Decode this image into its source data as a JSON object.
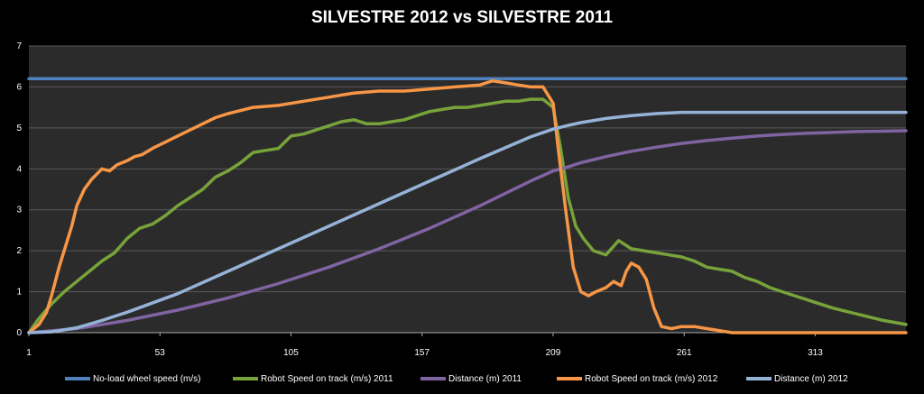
{
  "chart_data": {
    "type": "line",
    "title": "SILVESTRE 2012 vs SILVESTRE 2011",
    "xlabel": "",
    "ylabel": "",
    "xlim": [
      1,
      349
    ],
    "ylim": [
      0,
      7
    ],
    "y_ticks": [
      0,
      1,
      2,
      3,
      4,
      5,
      6,
      7
    ],
    "x_ticks": [
      1,
      53,
      105,
      157,
      209,
      261,
      313
    ],
    "grid": true,
    "legend_position": "bottom",
    "background": "#000000",
    "plot_background": "#2b2b2b",
    "series": [
      {
        "name": "No-load wheel speed (m/s)",
        "color": "#4f81bd",
        "x": [
          1,
          349
        ],
        "y": [
          6.2,
          6.2
        ]
      },
      {
        "name": "Robot Speed on track (m/s)  2011",
        "color": "#77a33a",
        "x": [
          1,
          5,
          10,
          15,
          20,
          25,
          30,
          35,
          40,
          45,
          50,
          55,
          60,
          65,
          70,
          75,
          80,
          85,
          90,
          95,
          100,
          105,
          110,
          115,
          120,
          125,
          130,
          135,
          140,
          145,
          150,
          155,
          160,
          165,
          170,
          175,
          180,
          185,
          190,
          195,
          200,
          205,
          209,
          212,
          215,
          218,
          221,
          225,
          230,
          235,
          240,
          245,
          250,
          255,
          260,
          265,
          270,
          275,
          280,
          285,
          290,
          295,
          300,
          310,
          320,
          330,
          340,
          349
        ],
        "y": [
          0,
          0.35,
          0.7,
          1.0,
          1.25,
          1.5,
          1.75,
          1.95,
          2.3,
          2.55,
          2.65,
          2.85,
          3.1,
          3.3,
          3.5,
          3.8,
          3.95,
          4.15,
          4.4,
          4.45,
          4.5,
          4.8,
          4.85,
          4.95,
          5.05,
          5.15,
          5.2,
          5.1,
          5.1,
          5.15,
          5.2,
          5.3,
          5.4,
          5.45,
          5.5,
          5.5,
          5.55,
          5.6,
          5.65,
          5.65,
          5.7,
          5.7,
          5.5,
          4.5,
          3.3,
          2.6,
          2.3,
          2.0,
          1.9,
          2.25,
          2.05,
          2.0,
          1.95,
          1.9,
          1.85,
          1.75,
          1.6,
          1.55,
          1.5,
          1.35,
          1.25,
          1.1,
          1.0,
          0.8,
          0.6,
          0.45,
          0.3,
          0.2
        ]
      },
      {
        "name": "Distance (m) 2011",
        "color": "#8064a2",
        "x": [
          1,
          20,
          40,
          60,
          80,
          100,
          120,
          140,
          160,
          180,
          200,
          209,
          215,
          220,
          230,
          240,
          250,
          260,
          270,
          280,
          290,
          300,
          310,
          320,
          330,
          340,
          349
        ],
        "y": [
          0,
          0.1,
          0.3,
          0.55,
          0.85,
          1.2,
          1.6,
          2.05,
          2.55,
          3.1,
          3.7,
          3.95,
          4.05,
          4.15,
          4.3,
          4.43,
          4.53,
          4.62,
          4.69,
          4.75,
          4.8,
          4.84,
          4.87,
          4.89,
          4.91,
          4.92,
          4.93
        ]
      },
      {
        "name": "Robot Speed on track (m/s)  2012",
        "color": "#f79646",
        "x": [
          1,
          5,
          8,
          10,
          13,
          15,
          18,
          20,
          23,
          26,
          30,
          33,
          36,
          40,
          43,
          46,
          50,
          55,
          60,
          65,
          70,
          75,
          80,
          90,
          100,
          110,
          120,
          130,
          140,
          150,
          160,
          170,
          180,
          185,
          190,
          195,
          200,
          205,
          209,
          211,
          214,
          217,
          220,
          223,
          226,
          230,
          233,
          236,
          238,
          240,
          243,
          246,
          249,
          252,
          256,
          260,
          265,
          270,
          275,
          280,
          290,
          300,
          320,
          349
        ],
        "y": [
          0,
          0.2,
          0.5,
          0.9,
          1.6,
          2.0,
          2.6,
          3.1,
          3.5,
          3.75,
          4.0,
          3.95,
          4.1,
          4.2,
          4.3,
          4.35,
          4.5,
          4.65,
          4.8,
          4.95,
          5.1,
          5.25,
          5.35,
          5.5,
          5.55,
          5.65,
          5.75,
          5.85,
          5.9,
          5.9,
          5.95,
          6.0,
          6.05,
          6.15,
          6.1,
          6.05,
          6.0,
          6.0,
          5.6,
          4.5,
          3.0,
          1.6,
          1.0,
          0.9,
          1.0,
          1.1,
          1.25,
          1.15,
          1.5,
          1.7,
          1.6,
          1.3,
          0.6,
          0.15,
          0.1,
          0.15,
          0.15,
          0.1,
          0.05,
          0,
          0,
          0,
          0,
          0
        ]
      },
      {
        "name": "Distance (m) 2012",
        "color": "#95b3d7",
        "x": [
          1,
          10,
          20,
          30,
          40,
          60,
          80,
          100,
          120,
          140,
          160,
          180,
          200,
          209,
          215,
          220,
          230,
          240,
          250,
          260,
          270,
          280,
          300,
          349
        ],
        "y": [
          0,
          0.02,
          0.12,
          0.3,
          0.5,
          0.95,
          1.5,
          2.05,
          2.6,
          3.15,
          3.7,
          4.25,
          4.78,
          4.97,
          5.06,
          5.13,
          5.23,
          5.3,
          5.35,
          5.38,
          5.38,
          5.38,
          5.38,
          5.38
        ]
      }
    ]
  }
}
